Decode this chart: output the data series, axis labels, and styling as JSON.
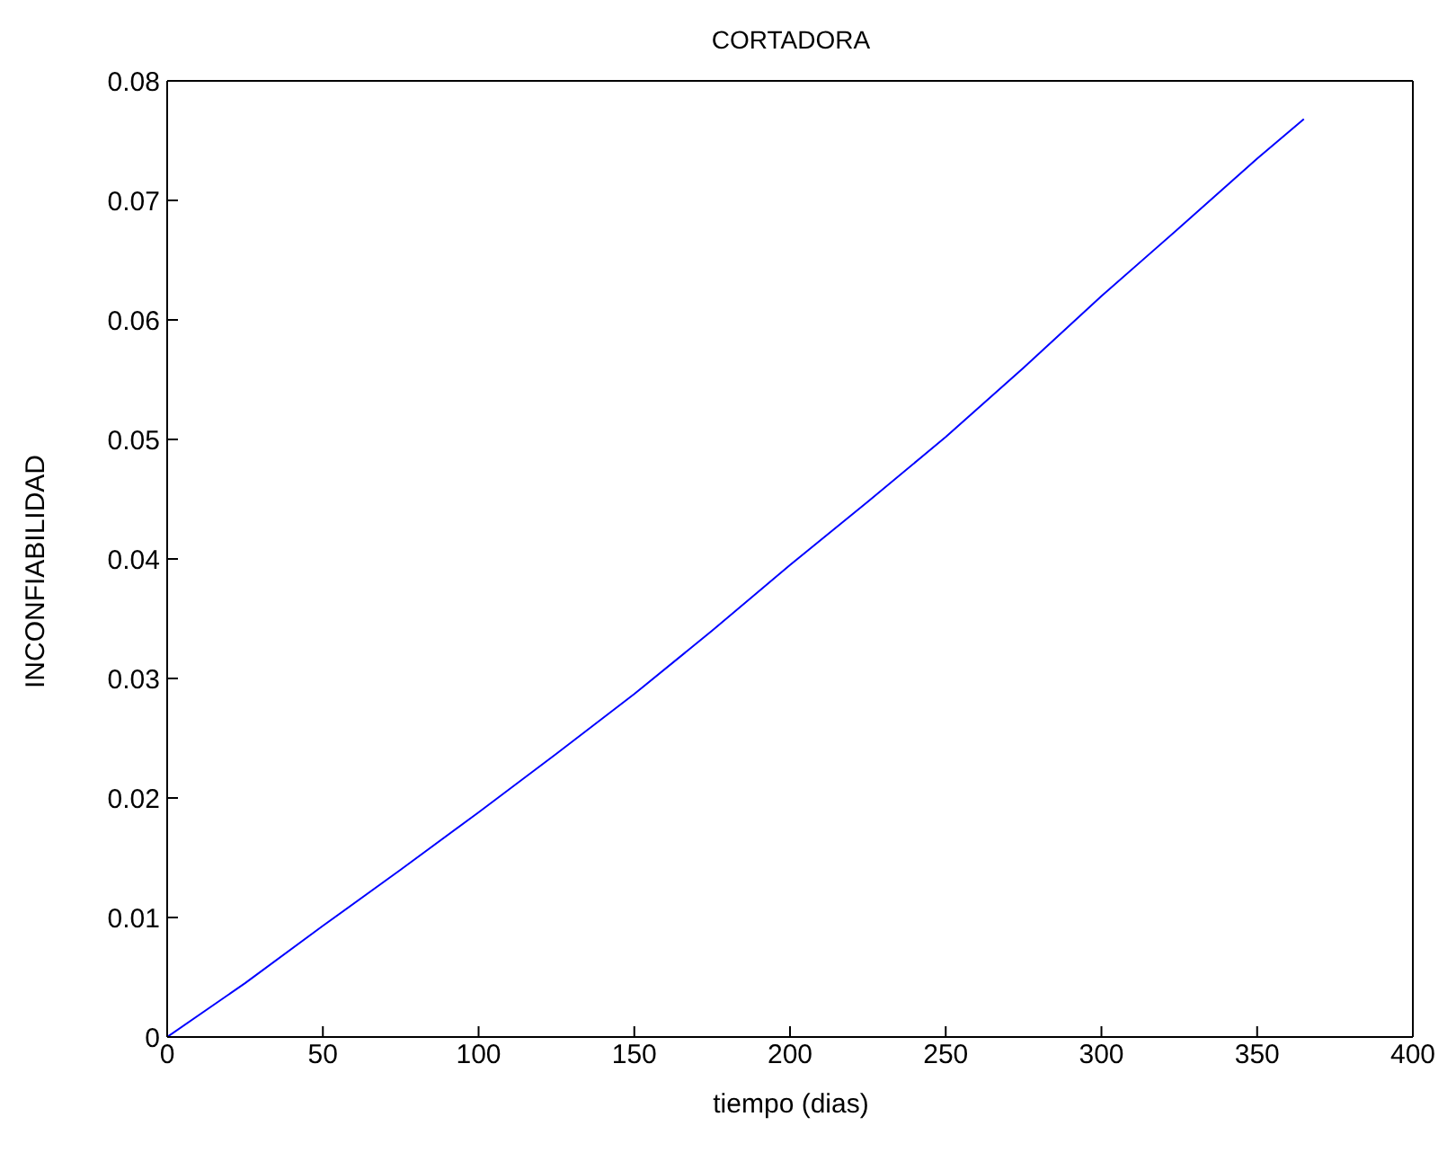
{
  "chart_data": {
    "type": "line",
    "title": "CORTADORA",
    "xlabel": "tiempo (dias)",
    "ylabel": "INCONFIABILIDAD",
    "x": [
      0,
      25,
      50,
      75,
      100,
      125,
      150,
      175,
      200,
      225,
      250,
      275,
      300,
      325,
      350,
      365
    ],
    "series": [
      {
        "color": "#0000ff",
        "values": [
          0,
          0.0045,
          0.0093,
          0.014,
          0.0188,
          0.0237,
          0.0287,
          0.034,
          0.0395,
          0.0448,
          0.0502,
          0.056,
          0.062,
          0.0677,
          0.0735,
          0.0768
        ]
      }
    ],
    "xlim": [
      0,
      400
    ],
    "xticks": [
      0,
      50,
      100,
      150,
      200,
      250,
      300,
      350,
      400
    ],
    "ylim": [
      0,
      0.08
    ],
    "yticks": [
      0,
      0.01,
      0.02,
      0.03,
      0.04,
      0.05,
      0.06,
      0.07,
      0.08
    ],
    "grid": false,
    "legend": false,
    "marker": "none",
    "line_style": "solid"
  }
}
